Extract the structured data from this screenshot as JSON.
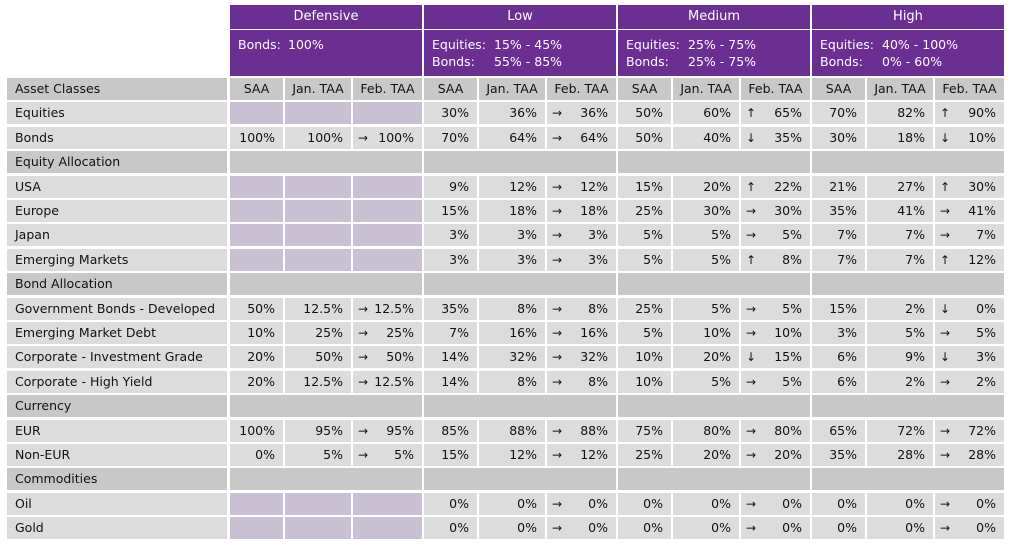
{
  "profiles": [
    {
      "name": "Defensive",
      "desc": [
        {
          "label": "Bonds:",
          "value": "100%"
        }
      ]
    },
    {
      "name": "Low",
      "desc": [
        {
          "label": "Equities:",
          "value": "15% - 45%"
        },
        {
          "label": "Bonds:",
          "value": "55% - 85%"
        }
      ]
    },
    {
      "name": "Medium",
      "desc": [
        {
          "label": "Equities:",
          "value": "25% - 75%"
        },
        {
          "label": "Bonds:",
          "value": "25% - 75%"
        }
      ]
    },
    {
      "name": "High",
      "desc": [
        {
          "label": "Equities:",
          "value": "40% - 100%"
        },
        {
          "label": "Bonds:",
          "value": "0% - 60%"
        }
      ]
    }
  ],
  "header_row": {
    "label": "Asset Classes",
    "cols": [
      "SAA",
      "Jan. TAA",
      "Feb. TAA"
    ]
  },
  "arrows": {
    "right": "→",
    "up": "↑",
    "down": "↓"
  },
  "rows": [
    {
      "type": "data",
      "label": "Equities",
      "d": [
        [
          null,
          null,
          null,
          null
        ],
        [
          "30%",
          "36%",
          "right",
          "36%"
        ],
        [
          "50%",
          "60%",
          "up",
          "65%"
        ],
        [
          "70%",
          "82%",
          "up",
          "90%"
        ]
      ]
    },
    {
      "type": "data",
      "label": "Bonds",
      "d": [
        [
          "100%",
          "100%",
          "right",
          "100%"
        ],
        [
          "70%",
          "64%",
          "right",
          "64%"
        ],
        [
          "50%",
          "40%",
          "down",
          "35%"
        ],
        [
          "30%",
          "18%",
          "down",
          "10%"
        ]
      ]
    },
    {
      "type": "section",
      "label": "Equity Allocation"
    },
    {
      "type": "data",
      "label": "USA",
      "d": [
        [
          null,
          null,
          null,
          null
        ],
        [
          "9%",
          "12%",
          "right",
          "12%"
        ],
        [
          "15%",
          "20%",
          "up",
          "22%"
        ],
        [
          "21%",
          "27%",
          "up",
          "30%"
        ]
      ]
    },
    {
      "type": "data",
      "label": "Europe",
      "d": [
        [
          null,
          null,
          null,
          null
        ],
        [
          "15%",
          "18%",
          "right",
          "18%"
        ],
        [
          "25%",
          "30%",
          "right",
          "30%"
        ],
        [
          "35%",
          "41%",
          "right",
          "41%"
        ]
      ]
    },
    {
      "type": "data",
      "label": "Japan",
      "d": [
        [
          null,
          null,
          null,
          null
        ],
        [
          "3%",
          "3%",
          "right",
          "3%"
        ],
        [
          "5%",
          "5%",
          "right",
          "5%"
        ],
        [
          "7%",
          "7%",
          "right",
          "7%"
        ]
      ]
    },
    {
      "type": "data",
      "label": "Emerging Markets",
      "d": [
        [
          null,
          null,
          null,
          null
        ],
        [
          "3%",
          "3%",
          "right",
          "3%"
        ],
        [
          "5%",
          "5%",
          "up",
          "8%"
        ],
        [
          "7%",
          "7%",
          "up",
          "12%"
        ]
      ]
    },
    {
      "type": "section",
      "label": "Bond Allocation"
    },
    {
      "type": "data",
      "label": "Government Bonds - Developed",
      "d": [
        [
          "50%",
          "12.5%",
          "right",
          "12.5%"
        ],
        [
          "35%",
          "8%",
          "right",
          "8%"
        ],
        [
          "25%",
          "5%",
          "right",
          "5%"
        ],
        [
          "15%",
          "2%",
          "down",
          "0%"
        ]
      ]
    },
    {
      "type": "data",
      "label": "Emerging Market Debt",
      "d": [
        [
          "10%",
          "25%",
          "right",
          "25%"
        ],
        [
          "7%",
          "16%",
          "right",
          "16%"
        ],
        [
          "5%",
          "10%",
          "right",
          "10%"
        ],
        [
          "3%",
          "5%",
          "right",
          "5%"
        ]
      ]
    },
    {
      "type": "data",
      "label": "Corporate - Investment Grade",
      "d": [
        [
          "20%",
          "50%",
          "right",
          "50%"
        ],
        [
          "14%",
          "32%",
          "right",
          "32%"
        ],
        [
          "10%",
          "20%",
          "down",
          "15%"
        ],
        [
          "6%",
          "9%",
          "down",
          "3%"
        ]
      ]
    },
    {
      "type": "data",
      "label": "Corporate - High Yield",
      "d": [
        [
          "20%",
          "12.5%",
          "right",
          "12.5%"
        ],
        [
          "14%",
          "8%",
          "right",
          "8%"
        ],
        [
          "10%",
          "5%",
          "right",
          "5%"
        ],
        [
          "6%",
          "2%",
          "right",
          "2%"
        ]
      ]
    },
    {
      "type": "section",
      "label": "Currency"
    },
    {
      "type": "data",
      "label": "EUR",
      "d": [
        [
          "100%",
          "95%",
          "right",
          "95%"
        ],
        [
          "85%",
          "88%",
          "right",
          "88%"
        ],
        [
          "75%",
          "80%",
          "right",
          "80%"
        ],
        [
          "65%",
          "72%",
          "right",
          "72%"
        ]
      ]
    },
    {
      "type": "data",
      "label": "Non-EUR",
      "d": [
        [
          "0%",
          "5%",
          "right",
          "5%"
        ],
        [
          "15%",
          "12%",
          "right",
          "12%"
        ],
        [
          "25%",
          "20%",
          "right",
          "20%"
        ],
        [
          "35%",
          "28%",
          "right",
          "28%"
        ]
      ]
    },
    {
      "type": "section",
      "label": "Commodities"
    },
    {
      "type": "data",
      "label": "Oil",
      "d": [
        [
          null,
          null,
          null,
          null
        ],
        [
          "0%",
          "0%",
          "right",
          "0%"
        ],
        [
          "0%",
          "0%",
          "right",
          "0%"
        ],
        [
          "0%",
          "0%",
          "right",
          "0%"
        ]
      ]
    },
    {
      "type": "data",
      "label": "Gold",
      "d": [
        [
          null,
          null,
          null,
          null
        ],
        [
          "0%",
          "0%",
          "right",
          "0%"
        ],
        [
          "0%",
          "0%",
          "right",
          "0%"
        ],
        [
          "0%",
          "0%",
          "right",
          "0%"
        ]
      ]
    }
  ]
}
